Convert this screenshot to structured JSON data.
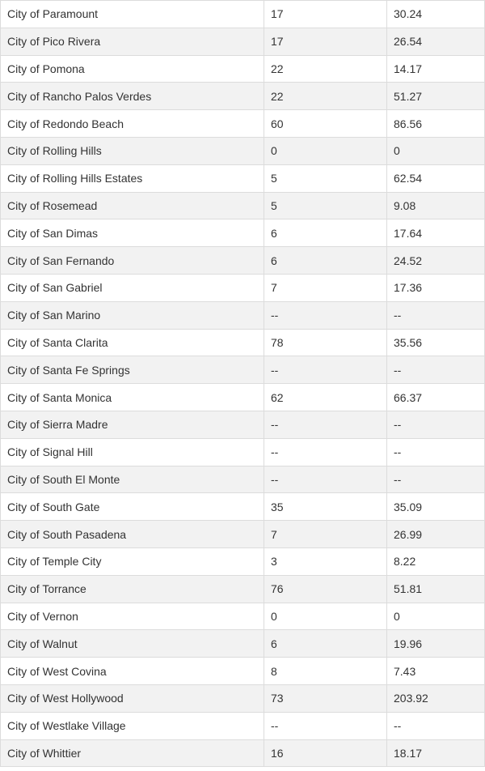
{
  "table": {
    "rows": [
      {
        "city": "City of Paramount",
        "count": "17",
        "rate": "30.24"
      },
      {
        "city": "City of Pico Rivera",
        "count": "17",
        "rate": "26.54"
      },
      {
        "city": "City of Pomona",
        "count": "22",
        "rate": "14.17"
      },
      {
        "city": "City of Rancho Palos Verdes",
        "count": "22",
        "rate": "51.27"
      },
      {
        "city": "City of Redondo Beach",
        "count": "60",
        "rate": "86.56"
      },
      {
        "city": "City of Rolling Hills",
        "count": "0",
        "rate": "0"
      },
      {
        "city": "City of Rolling Hills Estates",
        "count": "5",
        "rate": "62.54"
      },
      {
        "city": "City of Rosemead",
        "count": "5",
        "rate": "9.08"
      },
      {
        "city": "City of San Dimas",
        "count": "6",
        "rate": "17.64"
      },
      {
        "city": "City of San Fernando",
        "count": "6",
        "rate": "24.52"
      },
      {
        "city": "City of San Gabriel",
        "count": "7",
        "rate": "17.36"
      },
      {
        "city": "City of San Marino",
        "count": "--",
        "rate": "--"
      },
      {
        "city": "City of Santa Clarita",
        "count": "78",
        "rate": "35.56"
      },
      {
        "city": "City of Santa Fe Springs",
        "count": "--",
        "rate": "--"
      },
      {
        "city": "City of Santa Monica",
        "count": "62",
        "rate": "66.37"
      },
      {
        "city": "City of Sierra Madre",
        "count": "--",
        "rate": "--"
      },
      {
        "city": "City of Signal Hill",
        "count": "--",
        "rate": "--"
      },
      {
        "city": "City of South El Monte",
        "count": "--",
        "rate": "--"
      },
      {
        "city": "City of South Gate",
        "count": "35",
        "rate": "35.09"
      },
      {
        "city": "City of South Pasadena",
        "count": "7",
        "rate": "26.99"
      },
      {
        "city": "City of Temple City",
        "count": "3",
        "rate": "8.22"
      },
      {
        "city": "City of Torrance",
        "count": "76",
        "rate": "51.81"
      },
      {
        "city": "City of Vernon",
        "count": "0",
        "rate": "0"
      },
      {
        "city": "City of Walnut",
        "count": "6",
        "rate": "19.96"
      },
      {
        "city": "City of West Covina",
        "count": "8",
        "rate": "7.43"
      },
      {
        "city": "City of West Hollywood",
        "count": "73",
        "rate": "203.92"
      },
      {
        "city": "City of Westlake Village",
        "count": "--",
        "rate": "--"
      },
      {
        "city": "City of Whittier",
        "count": "16",
        "rate": "18.17"
      }
    ]
  }
}
